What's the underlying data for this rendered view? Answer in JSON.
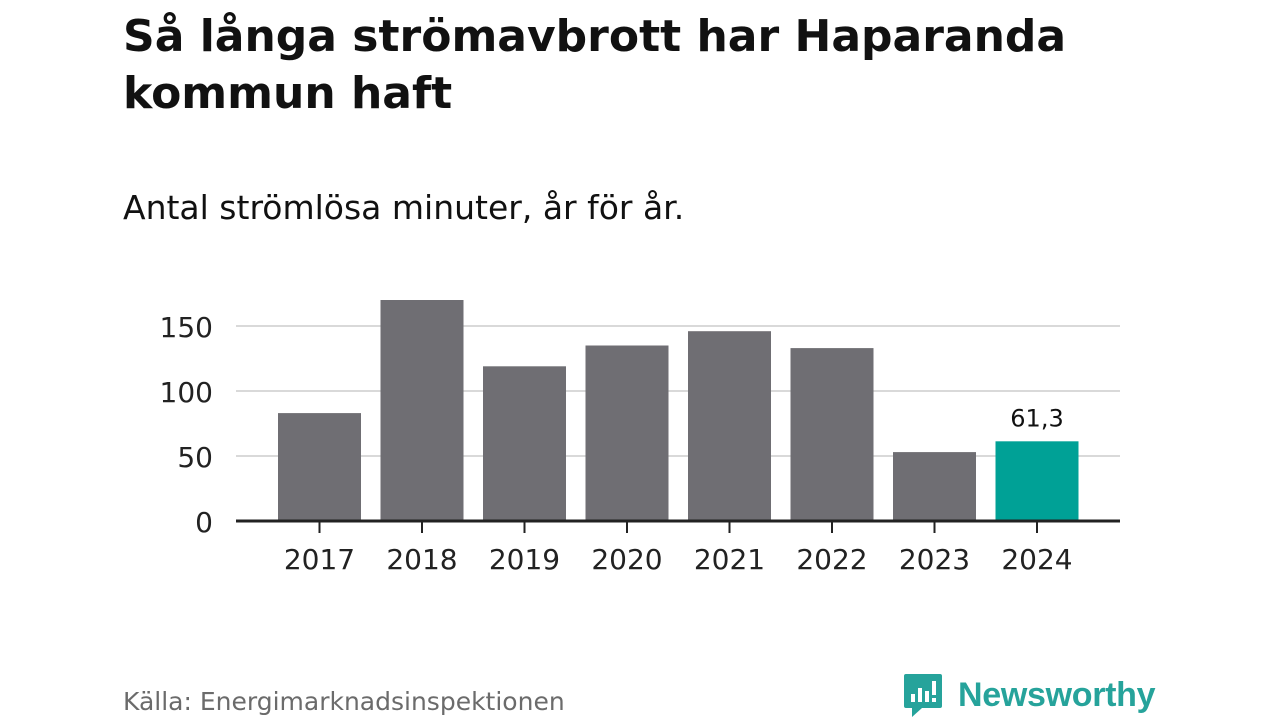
{
  "title": "Så långa strömavbrott har Haparanda kommun haft",
  "subtitle": "Antal strömlösa minuter, år för år.",
  "source": "Källa: Energimarknadsinspektionen",
  "brand": {
    "name": "Newsworthy",
    "icon": "newsworthy-logo-icon",
    "color": "#26a39b"
  },
  "chart_data": {
    "type": "bar",
    "title": "Så långa strömavbrott har Haparanda kommun haft",
    "subtitle": "Antal strömlösa minuter, år för år.",
    "categories": [
      "2017",
      "2018",
      "2019",
      "2020",
      "2021",
      "2022",
      "2023",
      "2024"
    ],
    "values": [
      83,
      170,
      119,
      135,
      146,
      133,
      53,
      61.3
    ],
    "data_labels": [
      {
        "category": "2024",
        "text": "61,3"
      }
    ],
    "highlight_category": "2024",
    "colors": {
      "default": "#6f6e73",
      "highlight": "#00a196"
    },
    "xlabel": "",
    "ylabel": "",
    "ylim": [
      0,
      175
    ],
    "yticks": [
      0,
      50,
      100,
      150
    ],
    "ytick_labels": [
      "0",
      "50",
      "100",
      "150"
    ],
    "grid": true
  }
}
